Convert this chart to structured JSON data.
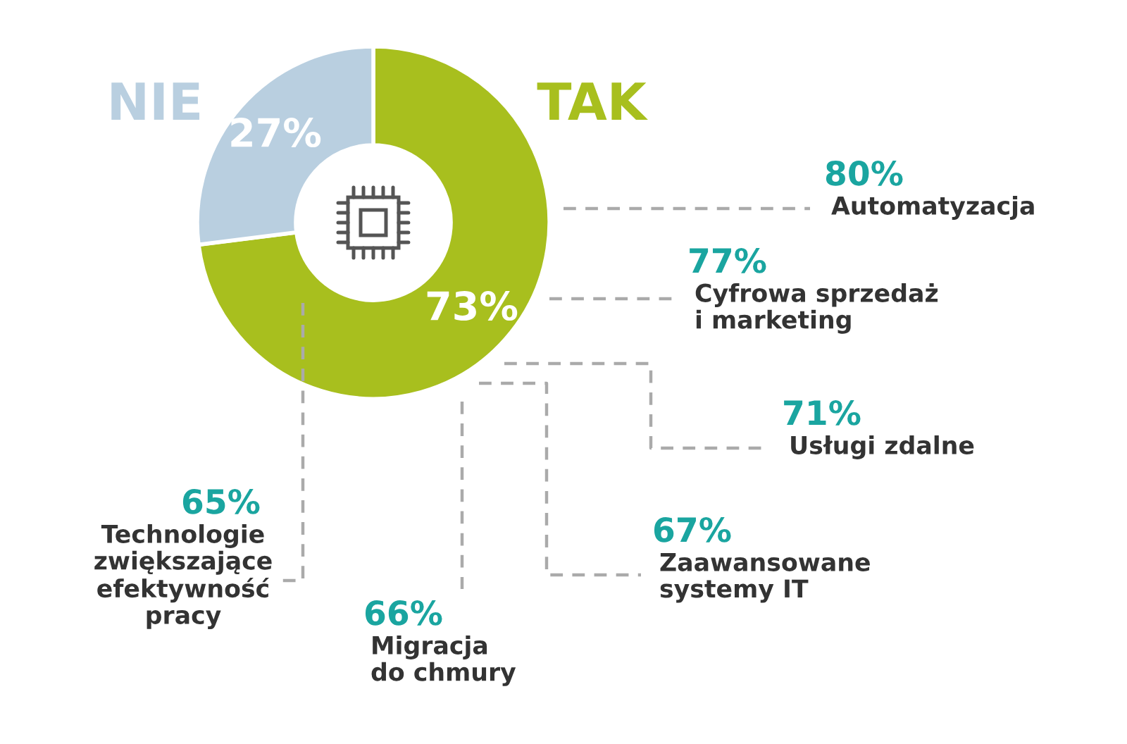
{
  "chart_data": {
    "type": "donut",
    "categories": [
      "TAK",
      "NIE"
    ],
    "values": [
      73,
      27
    ],
    "colors": [
      "#a8bf1e",
      "#b9cfe0"
    ],
    "value_labels": [
      "73%",
      "27%"
    ],
    "legend": false,
    "annotations": [
      "80%",
      "Automatyzacja",
      "77%",
      "Cyfrowa sprzedaż\ni marketing",
      "71%",
      "Usługi zdalne",
      "67%",
      "Zaawansowane\nsystemy IT",
      "66%",
      "Migracja\ndo chmury",
      "65%",
      "Technologie\nzwiększające\nefektywność\npracy"
    ]
  }
}
